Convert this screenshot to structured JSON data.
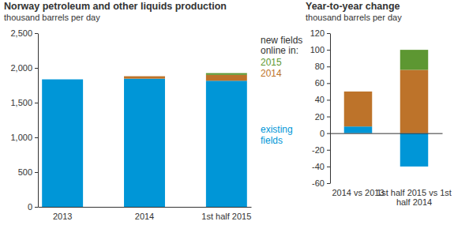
{
  "chart_data": [
    {
      "type": "bar",
      "stacked": true,
      "title": "Norway petroleum and other liquids production",
      "subtitle": "thousand barrels per day",
      "categories": [
        "2013",
        "2014",
        "1st half 2015"
      ],
      "series": [
        {
          "name": "existing fields",
          "color": "#0096d7",
          "values": [
            1835,
            1845,
            1815
          ]
        },
        {
          "name": "2014",
          "color": "#bd732a",
          "values": [
            0,
            35,
            85
          ]
        },
        {
          "name": "2015",
          "color": "#5d9732",
          "values": [
            0,
            0,
            25
          ]
        }
      ],
      "ylim": [
        0,
        2500
      ],
      "yticks": [
        0,
        500,
        {
          "value": 1000,
          "label": "1,000"
        },
        {
          "value": 1500,
          "label": "1,500"
        },
        {
          "value": 2000,
          "label": "2,000"
        },
        {
          "value": 2500,
          "label": "2,500"
        }
      ],
      "grid": false,
      "legend": "right",
      "annotations": [
        "new fields",
        "online in:"
      ]
    },
    {
      "type": "bar",
      "stacked": true,
      "title": "Year-to-year change",
      "subtitle": "thousand barrels per day",
      "categories": [
        "2014 vs 2013",
        "1st half 2015 vs 1st half 2014"
      ],
      "series": [
        {
          "color": "#0096d7",
          "values": [
            8,
            -40
          ]
        },
        {
          "color": "#bd732a",
          "values": [
            42,
            76
          ]
        },
        {
          "color": "#5d9732",
          "values": [
            0,
            24
          ]
        }
      ],
      "ylim": [
        -60,
        120
      ],
      "yticks": [
        -60,
        -40,
        -20,
        0,
        20,
        40,
        60,
        80,
        100,
        120
      ],
      "grid": false
    }
  ]
}
